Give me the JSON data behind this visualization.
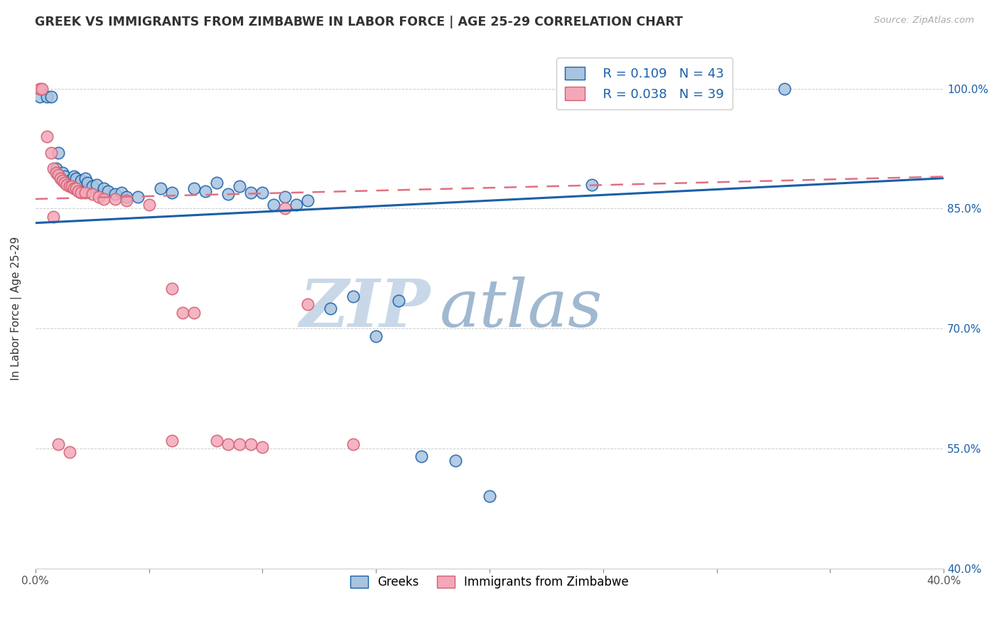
{
  "title": "GREEK VS IMMIGRANTS FROM ZIMBABWE IN LABOR FORCE | AGE 25-29 CORRELATION CHART",
  "source": "Source: ZipAtlas.com",
  "xlabel": "",
  "ylabel": "In Labor Force | Age 25-29",
  "xlim": [
    0.0,
    0.4
  ],
  "ylim": [
    0.4,
    1.05
  ],
  "xticks": [
    0.0,
    0.05,
    0.1,
    0.15,
    0.2,
    0.25,
    0.3,
    0.35,
    0.4
  ],
  "xticklabels": [
    "0.0%",
    "",
    "",
    "",
    "",
    "",
    "",
    "",
    "40.0%"
  ],
  "yticks": [
    0.4,
    0.55,
    0.7,
    0.85,
    1.0
  ],
  "yticklabels": [
    "40.0%",
    "55.0%",
    "70.0%",
    "85.0%",
    "100.0%"
  ],
  "legend_r_blue": "R = 0.109",
  "legend_n_blue": "N = 43",
  "legend_r_pink": "R = 0.038",
  "legend_n_pink": "N = 39",
  "blue_color": "#a8c4e0",
  "pink_color": "#f4a7b9",
  "line_blue_color": "#1a5fa8",
  "line_pink_color": "#e07080",
  "watermark_zip": "ZIP",
  "watermark_atlas": "atlas",
  "watermark_color_zip": "#c8d8e8",
  "watermark_color_atlas": "#a0b8d0",
  "blue_scatter": [
    [
      0.002,
      0.99
    ],
    [
      0.005,
      0.99
    ],
    [
      0.007,
      0.99
    ],
    [
      0.009,
      0.9
    ],
    [
      0.01,
      0.92
    ],
    [
      0.012,
      0.895
    ],
    [
      0.013,
      0.89
    ],
    [
      0.015,
      0.885
    ],
    [
      0.017,
      0.89
    ],
    [
      0.018,
      0.888
    ],
    [
      0.02,
      0.885
    ],
    [
      0.022,
      0.888
    ],
    [
      0.023,
      0.882
    ],
    [
      0.025,
      0.878
    ],
    [
      0.027,
      0.88
    ],
    [
      0.03,
      0.875
    ],
    [
      0.032,
      0.872
    ],
    [
      0.035,
      0.868
    ],
    [
      0.038,
      0.87
    ],
    [
      0.04,
      0.865
    ],
    [
      0.045,
      0.865
    ],
    [
      0.055,
      0.875
    ],
    [
      0.06,
      0.87
    ],
    [
      0.07,
      0.875
    ],
    [
      0.075,
      0.872
    ],
    [
      0.08,
      0.882
    ],
    [
      0.085,
      0.868
    ],
    [
      0.09,
      0.878
    ],
    [
      0.095,
      0.87
    ],
    [
      0.1,
      0.87
    ],
    [
      0.105,
      0.855
    ],
    [
      0.11,
      0.865
    ],
    [
      0.115,
      0.855
    ],
    [
      0.12,
      0.86
    ],
    [
      0.13,
      0.725
    ],
    [
      0.14,
      0.74
    ],
    [
      0.15,
      0.69
    ],
    [
      0.16,
      0.735
    ],
    [
      0.17,
      0.54
    ],
    [
      0.185,
      0.535
    ],
    [
      0.2,
      0.49
    ],
    [
      0.245,
      0.88
    ],
    [
      0.33,
      1.0
    ]
  ],
  "pink_scatter": [
    [
      0.002,
      1.0
    ],
    [
      0.003,
      1.0
    ],
    [
      0.005,
      0.94
    ],
    [
      0.007,
      0.92
    ],
    [
      0.008,
      0.9
    ],
    [
      0.009,
      0.895
    ],
    [
      0.01,
      0.892
    ],
    [
      0.011,
      0.888
    ],
    [
      0.012,
      0.885
    ],
    [
      0.013,
      0.882
    ],
    [
      0.014,
      0.88
    ],
    [
      0.015,
      0.878
    ],
    [
      0.016,
      0.878
    ],
    [
      0.017,
      0.875
    ],
    [
      0.018,
      0.875
    ],
    [
      0.019,
      0.872
    ],
    [
      0.02,
      0.87
    ],
    [
      0.022,
      0.87
    ],
    [
      0.025,
      0.868
    ],
    [
      0.028,
      0.865
    ],
    [
      0.03,
      0.862
    ],
    [
      0.035,
      0.862
    ],
    [
      0.04,
      0.86
    ],
    [
      0.05,
      0.855
    ],
    [
      0.06,
      0.75
    ],
    [
      0.065,
      0.72
    ],
    [
      0.08,
      0.56
    ],
    [
      0.085,
      0.555
    ],
    [
      0.09,
      0.555
    ],
    [
      0.095,
      0.555
    ],
    [
      0.1,
      0.552
    ],
    [
      0.11,
      0.85
    ],
    [
      0.12,
      0.73
    ],
    [
      0.14,
      0.555
    ],
    [
      0.06,
      0.56
    ],
    [
      0.07,
      0.72
    ],
    [
      0.015,
      0.545
    ],
    [
      0.01,
      0.555
    ],
    [
      0.008,
      0.84
    ]
  ],
  "blue_line_x": [
    0.0,
    0.4
  ],
  "blue_line_y": [
    0.832,
    0.888
  ],
  "pink_line_x": [
    0.0,
    0.4
  ],
  "pink_line_y": [
    0.862,
    0.89
  ]
}
